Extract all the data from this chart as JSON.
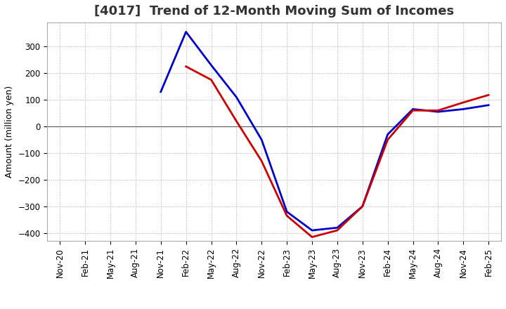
{
  "title": "[4017]  Trend of 12-Month Moving Sum of Incomes",
  "ylabel": "Amount (million yen)",
  "x_labels": [
    "Nov-20",
    "Feb-21",
    "May-21",
    "Aug-21",
    "Nov-21",
    "Feb-22",
    "May-22",
    "Aug-22",
    "Nov-22",
    "Feb-23",
    "May-23",
    "Aug-23",
    "Nov-23",
    "Feb-24",
    "May-24",
    "Aug-24",
    "Nov-24",
    "Feb-25"
  ],
  "ordinary_income": [
    null,
    null,
    null,
    null,
    130,
    355,
    230,
    110,
    -50,
    -320,
    -390,
    -380,
    -300,
    -30,
    65,
    55,
    65,
    80
  ],
  "net_income": [
    null,
    null,
    null,
    null,
    null,
    225,
    175,
    20,
    -130,
    -335,
    -415,
    -390,
    -300,
    -50,
    60,
    60,
    90,
    118
  ],
  "ordinary_income_color": "#0000cc",
  "net_income_color": "#cc0000",
  "ylim": [
    -430,
    390
  ],
  "yticks": [
    -400,
    -300,
    -200,
    -100,
    0,
    100,
    200,
    300
  ],
  "background_color": "#ffffff",
  "grid_color": "#aaaaaa",
  "title_fontsize": 13,
  "label_fontsize": 9,
  "tick_fontsize": 8.5
}
